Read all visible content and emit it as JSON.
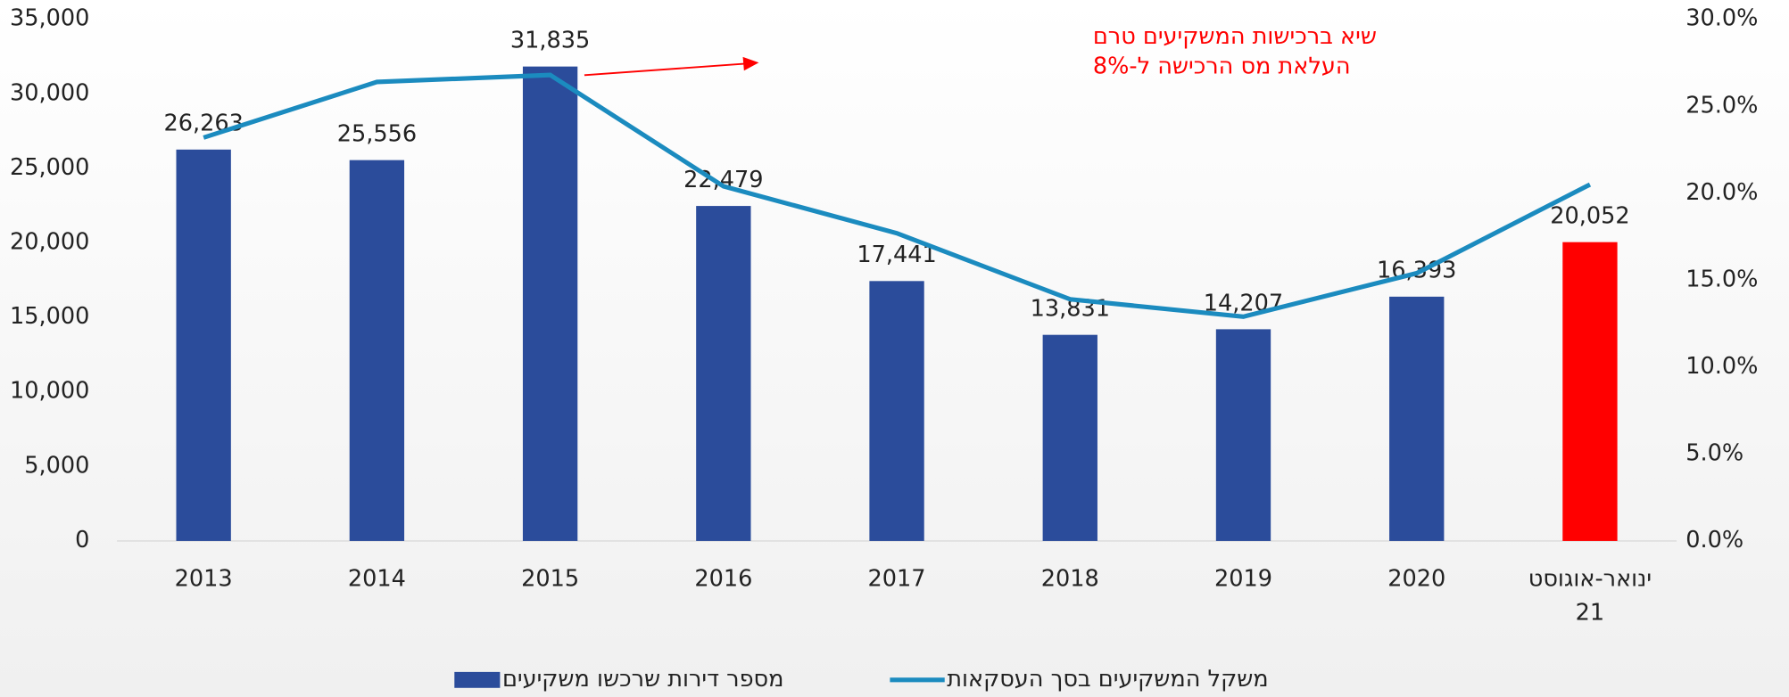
{
  "chart_data": {
    "type": "bar",
    "categories": [
      "2013",
      "2014",
      "2015",
      "2016",
      "2017",
      "2018",
      "2019",
      "2020",
      "ינואר-אוגוסט 21"
    ],
    "series": [
      {
        "name": "מספר דירות שרכשו משקיעים",
        "type": "bar",
        "color": "#2b4c9b",
        "colors": [
          "#2b4c9b",
          "#2b4c9b",
          "#2b4c9b",
          "#2b4c9b",
          "#2b4c9b",
          "#2b4c9b",
          "#2b4c9b",
          "#2b4c9b",
          "#ff0000"
        ],
        "values": [
          26263,
          25556,
          31835,
          22479,
          17441,
          13831,
          14207,
          16393,
          20052
        ],
        "value_labels": [
          "26,263",
          "25,556",
          "31,835",
          "22,479",
          "17,441",
          "13,831",
          "14,207",
          "16,393",
          "20,052"
        ]
      },
      {
        "name": "משקל המשקיעים בסך העסקאות",
        "type": "line",
        "axis": "y2",
        "color": "#1b8bbf",
        "values": [
          23.2,
          26.4,
          26.8,
          20.4,
          17.7,
          13.9,
          12.9,
          15.4,
          20.5
        ]
      }
    ],
    "ylim": [
      0,
      35000
    ],
    "yticks": [
      0,
      {
        "value": 5000,
        "label": "5,000"
      },
      {
        "value": 10000,
        "label": "10,000"
      },
      {
        "value": 15000,
        "label": "15,000"
      },
      {
        "value": 20000,
        "label": "20,000"
      },
      {
        "value": 25000,
        "label": "25,000"
      },
      {
        "value": 30000,
        "label": "30,000"
      },
      {
        "value": 35000,
        "label": "35,000"
      }
    ],
    "y2lim": [
      0,
      30
    ],
    "y2ticks": [
      {
        "value": 0,
        "label": "0.0%"
      },
      {
        "value": 5,
        "label": "5.0%"
      },
      {
        "value": 10,
        "label": "10.0%"
      },
      {
        "value": 15,
        "label": "15.0%"
      },
      {
        "value": 20,
        "label": "20.0%"
      },
      {
        "value": 25,
        "label": "25.0%"
      },
      {
        "value": 30,
        "label": "30.0%"
      }
    ],
    "annotation": {
      "lines": [
        "שיא ברכישות המשקיעים טרם",
        "העלאת מס הרכישה ל-8%"
      ],
      "color": "#ff0000"
    },
    "legend": "bottom"
  }
}
